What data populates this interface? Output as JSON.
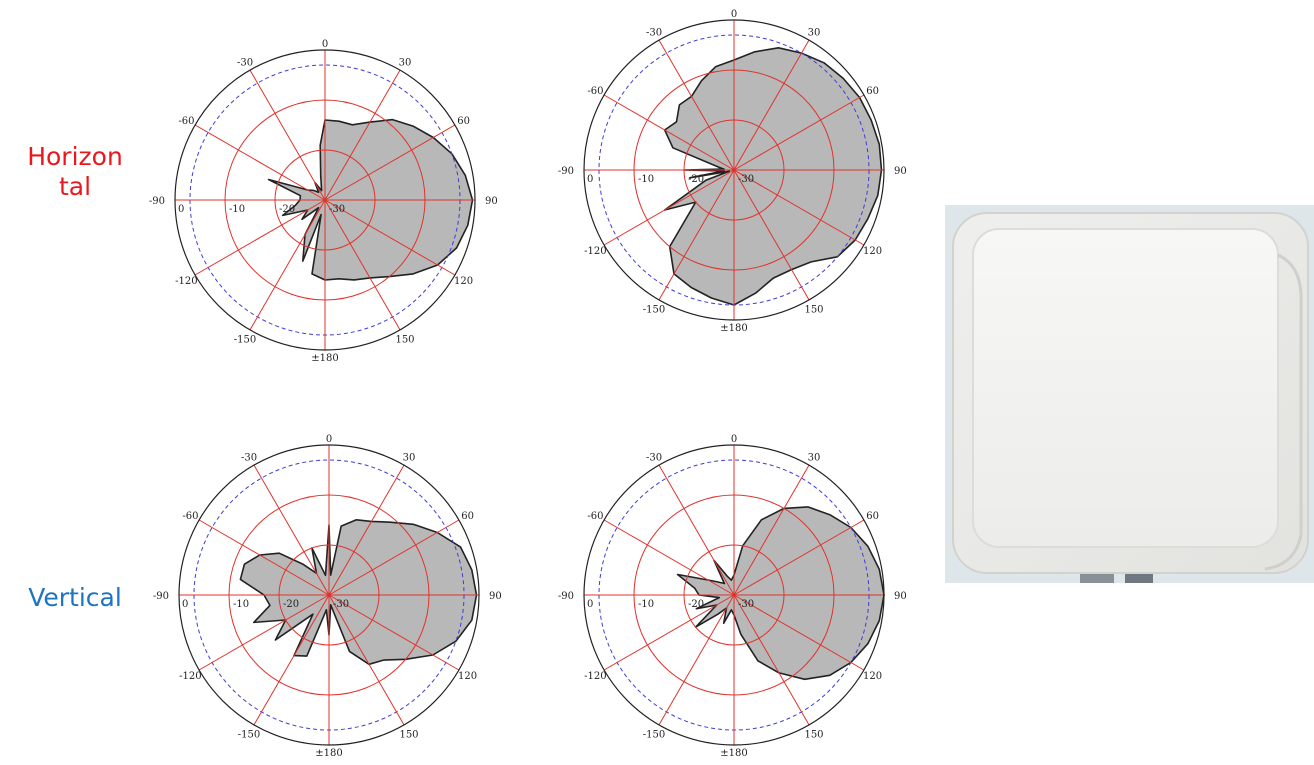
{
  "row_labels": {
    "horizontal": "Horizon\ntal",
    "vertical": "Vertical"
  },
  "colors": {
    "horizontal_label": "#e8191e",
    "vertical_label": "#1f74c2",
    "grid": "#e0332c",
    "outer_ring": "#222222",
    "dashed_ring": "#3d3dd6",
    "pattern_fill": "#b8b8b8",
    "pattern_stroke": "#222222"
  },
  "product_image": {
    "icon": "white-rfid-panel-antenna"
  },
  "chart_data": [
    {
      "type": "polar-area",
      "angle_labels": [
        "0",
        "30",
        "60",
        "90",
        "120",
        "150",
        "±180",
        "-150",
        "-120",
        "-90",
        "-60",
        "-30"
      ],
      "radial_labels": [
        "0",
        "-10",
        "-20",
        "-30"
      ],
      "radial_range_db": [
        -30,
        0
      ],
      "dashed_ring_db": -3,
      "pattern": [
        [
          0,
          -14
        ],
        [
          10,
          -14
        ],
        [
          20,
          -14
        ],
        [
          30,
          -12
        ],
        [
          40,
          -9
        ],
        [
          50,
          -7
        ],
        [
          60,
          -5
        ],
        [
          70,
          -3
        ],
        [
          80,
          -1.5
        ],
        [
          90,
          -0.5
        ],
        [
          100,
          -1
        ],
        [
          110,
          -2
        ],
        [
          120,
          -4
        ],
        [
          130,
          -7
        ],
        [
          140,
          -10
        ],
        [
          150,
          -12
        ],
        [
          160,
          -13
        ],
        [
          170,
          -14
        ],
        [
          180,
          -14
        ],
        [
          190,
          -15
        ],
        [
          195,
          -27
        ],
        [
          200,
          -17
        ],
        [
          210,
          -22
        ],
        [
          220,
          -28
        ],
        [
          230,
          -24
        ],
        [
          240,
          -26
        ],
        [
          250,
          -21
        ],
        [
          260,
          -24
        ],
        [
          270,
          -25
        ],
        [
          280,
          -25
        ],
        [
          290,
          -18
        ],
        [
          300,
          -26
        ],
        [
          310,
          -27
        ],
        [
          320,
          -28
        ],
        [
          330,
          -26
        ],
        [
          340,
          -28
        ],
        [
          350,
          -25
        ],
        [
          355,
          -19
        ]
      ]
    },
    {
      "type": "polar-area",
      "angle_labels": [
        "0",
        "30",
        "60",
        "90",
        "120",
        "150",
        "±180",
        "-150",
        "-120",
        "-90",
        "-60",
        "-30"
      ],
      "radial_labels": [
        "0",
        "-10",
        "-20",
        "-30"
      ],
      "radial_range_db": [
        -30,
        0
      ],
      "dashed_ring_db": -3,
      "pattern": [
        [
          0,
          -8
        ],
        [
          10,
          -6
        ],
        [
          20,
          -4
        ],
        [
          30,
          -3
        ],
        [
          40,
          -2
        ],
        [
          50,
          -1.5
        ],
        [
          60,
          -1
        ],
        [
          70,
          -0.8
        ],
        [
          80,
          -0.5
        ],
        [
          90,
          -0.5
        ],
        [
          100,
          -0.8
        ],
        [
          110,
          -1.5
        ],
        [
          120,
          -2
        ],
        [
          130,
          -3
        ],
        [
          140,
          -6
        ],
        [
          150,
          -7
        ],
        [
          160,
          -7
        ],
        [
          170,
          -5
        ],
        [
          180,
          -3
        ],
        [
          190,
          -4
        ],
        [
          200,
          -5
        ],
        [
          210,
          -6
        ],
        [
          220,
          -10
        ],
        [
          230,
          -20
        ],
        [
          240,
          -14
        ],
        [
          250,
          -24
        ],
        [
          255,
          -29
        ],
        [
          260,
          -21
        ],
        [
          265,
          -28
        ],
        [
          270,
          -20
        ],
        [
          275,
          -28
        ],
        [
          280,
          -27
        ],
        [
          290,
          -17
        ],
        [
          300,
          -14
        ],
        [
          310,
          -15
        ],
        [
          320,
          -13
        ],
        [
          330,
          -13
        ],
        [
          340,
          -11
        ],
        [
          350,
          -9
        ]
      ]
    },
    {
      "type": "polar-area",
      "angle_labels": [
        "0",
        "30",
        "60",
        "90",
        "120",
        "150",
        "±180",
        "-150",
        "-120",
        "-90",
        "-60",
        "-30"
      ],
      "radial_labels": [
        "0",
        "-10",
        "-20",
        "-30"
      ],
      "radial_range_db": [
        -30,
        0
      ],
      "dashed_ring_db": -3,
      "pattern": [
        [
          0,
          -16
        ],
        [
          5,
          -26
        ],
        [
          10,
          -16
        ],
        [
          20,
          -14
        ],
        [
          30,
          -13
        ],
        [
          40,
          -11
        ],
        [
          50,
          -8
        ],
        [
          60,
          -5
        ],
        [
          70,
          -2
        ],
        [
          80,
          -1
        ],
        [
          90,
          -0.5
        ],
        [
          100,
          -1
        ],
        [
          110,
          -3
        ],
        [
          120,
          -6
        ],
        [
          130,
          -10
        ],
        [
          140,
          -13
        ],
        [
          150,
          -14
        ],
        [
          160,
          -18
        ],
        [
          170,
          -28
        ],
        [
          180,
          -22
        ],
        [
          190,
          -27
        ],
        [
          200,
          -17
        ],
        [
          210,
          -16
        ],
        [
          220,
          -25
        ],
        [
          230,
          -16
        ],
        [
          240,
          -20
        ],
        [
          250,
          -14
        ],
        [
          260,
          -18
        ],
        [
          270,
          -17
        ],
        [
          280,
          -12
        ],
        [
          290,
          -12
        ],
        [
          300,
          -14
        ],
        [
          310,
          -17
        ],
        [
          320,
          -22
        ],
        [
          330,
          -25
        ],
        [
          340,
          -20
        ],
        [
          350,
          -26
        ]
      ]
    },
    {
      "type": "polar-area",
      "angle_labels": [
        "0",
        "30",
        "60",
        "90",
        "120",
        "150",
        "±180",
        "-150",
        "-120",
        "-90",
        "-60",
        "-30"
      ],
      "radial_labels": [
        "0",
        "-10",
        "-20",
        "-30"
      ],
      "radial_range_db": [
        -30,
        0
      ],
      "dashed_ring_db": -3,
      "pattern": [
        [
          0,
          -26
        ],
        [
          10,
          -20
        ],
        [
          20,
          -14
        ],
        [
          30,
          -10
        ],
        [
          40,
          -7
        ],
        [
          50,
          -5
        ],
        [
          60,
          -3
        ],
        [
          70,
          -1.5
        ],
        [
          80,
          -0.5
        ],
        [
          90,
          0
        ],
        [
          100,
          -0.5
        ],
        [
          110,
          -1.5
        ],
        [
          120,
          -3
        ],
        [
          130,
          -5
        ],
        [
          140,
          -8
        ],
        [
          150,
          -12
        ],
        [
          160,
          -16
        ],
        [
          170,
          -22
        ],
        [
          180,
          -26
        ],
        [
          190,
          -27
        ],
        [
          200,
          -24
        ],
        [
          210,
          -27
        ],
        [
          220,
          -25
        ],
        [
          230,
          -20
        ],
        [
          240,
          -26
        ],
        [
          250,
          -22
        ],
        [
          260,
          -27
        ],
        [
          270,
          -23
        ],
        [
          280,
          -22
        ],
        [
          290,
          -18
        ],
        [
          300,
          -24
        ],
        [
          310,
          -26
        ],
        [
          320,
          -27
        ],
        [
          330,
          -22
        ],
        [
          340,
          -26
        ],
        [
          350,
          -27
        ]
      ]
    }
  ]
}
